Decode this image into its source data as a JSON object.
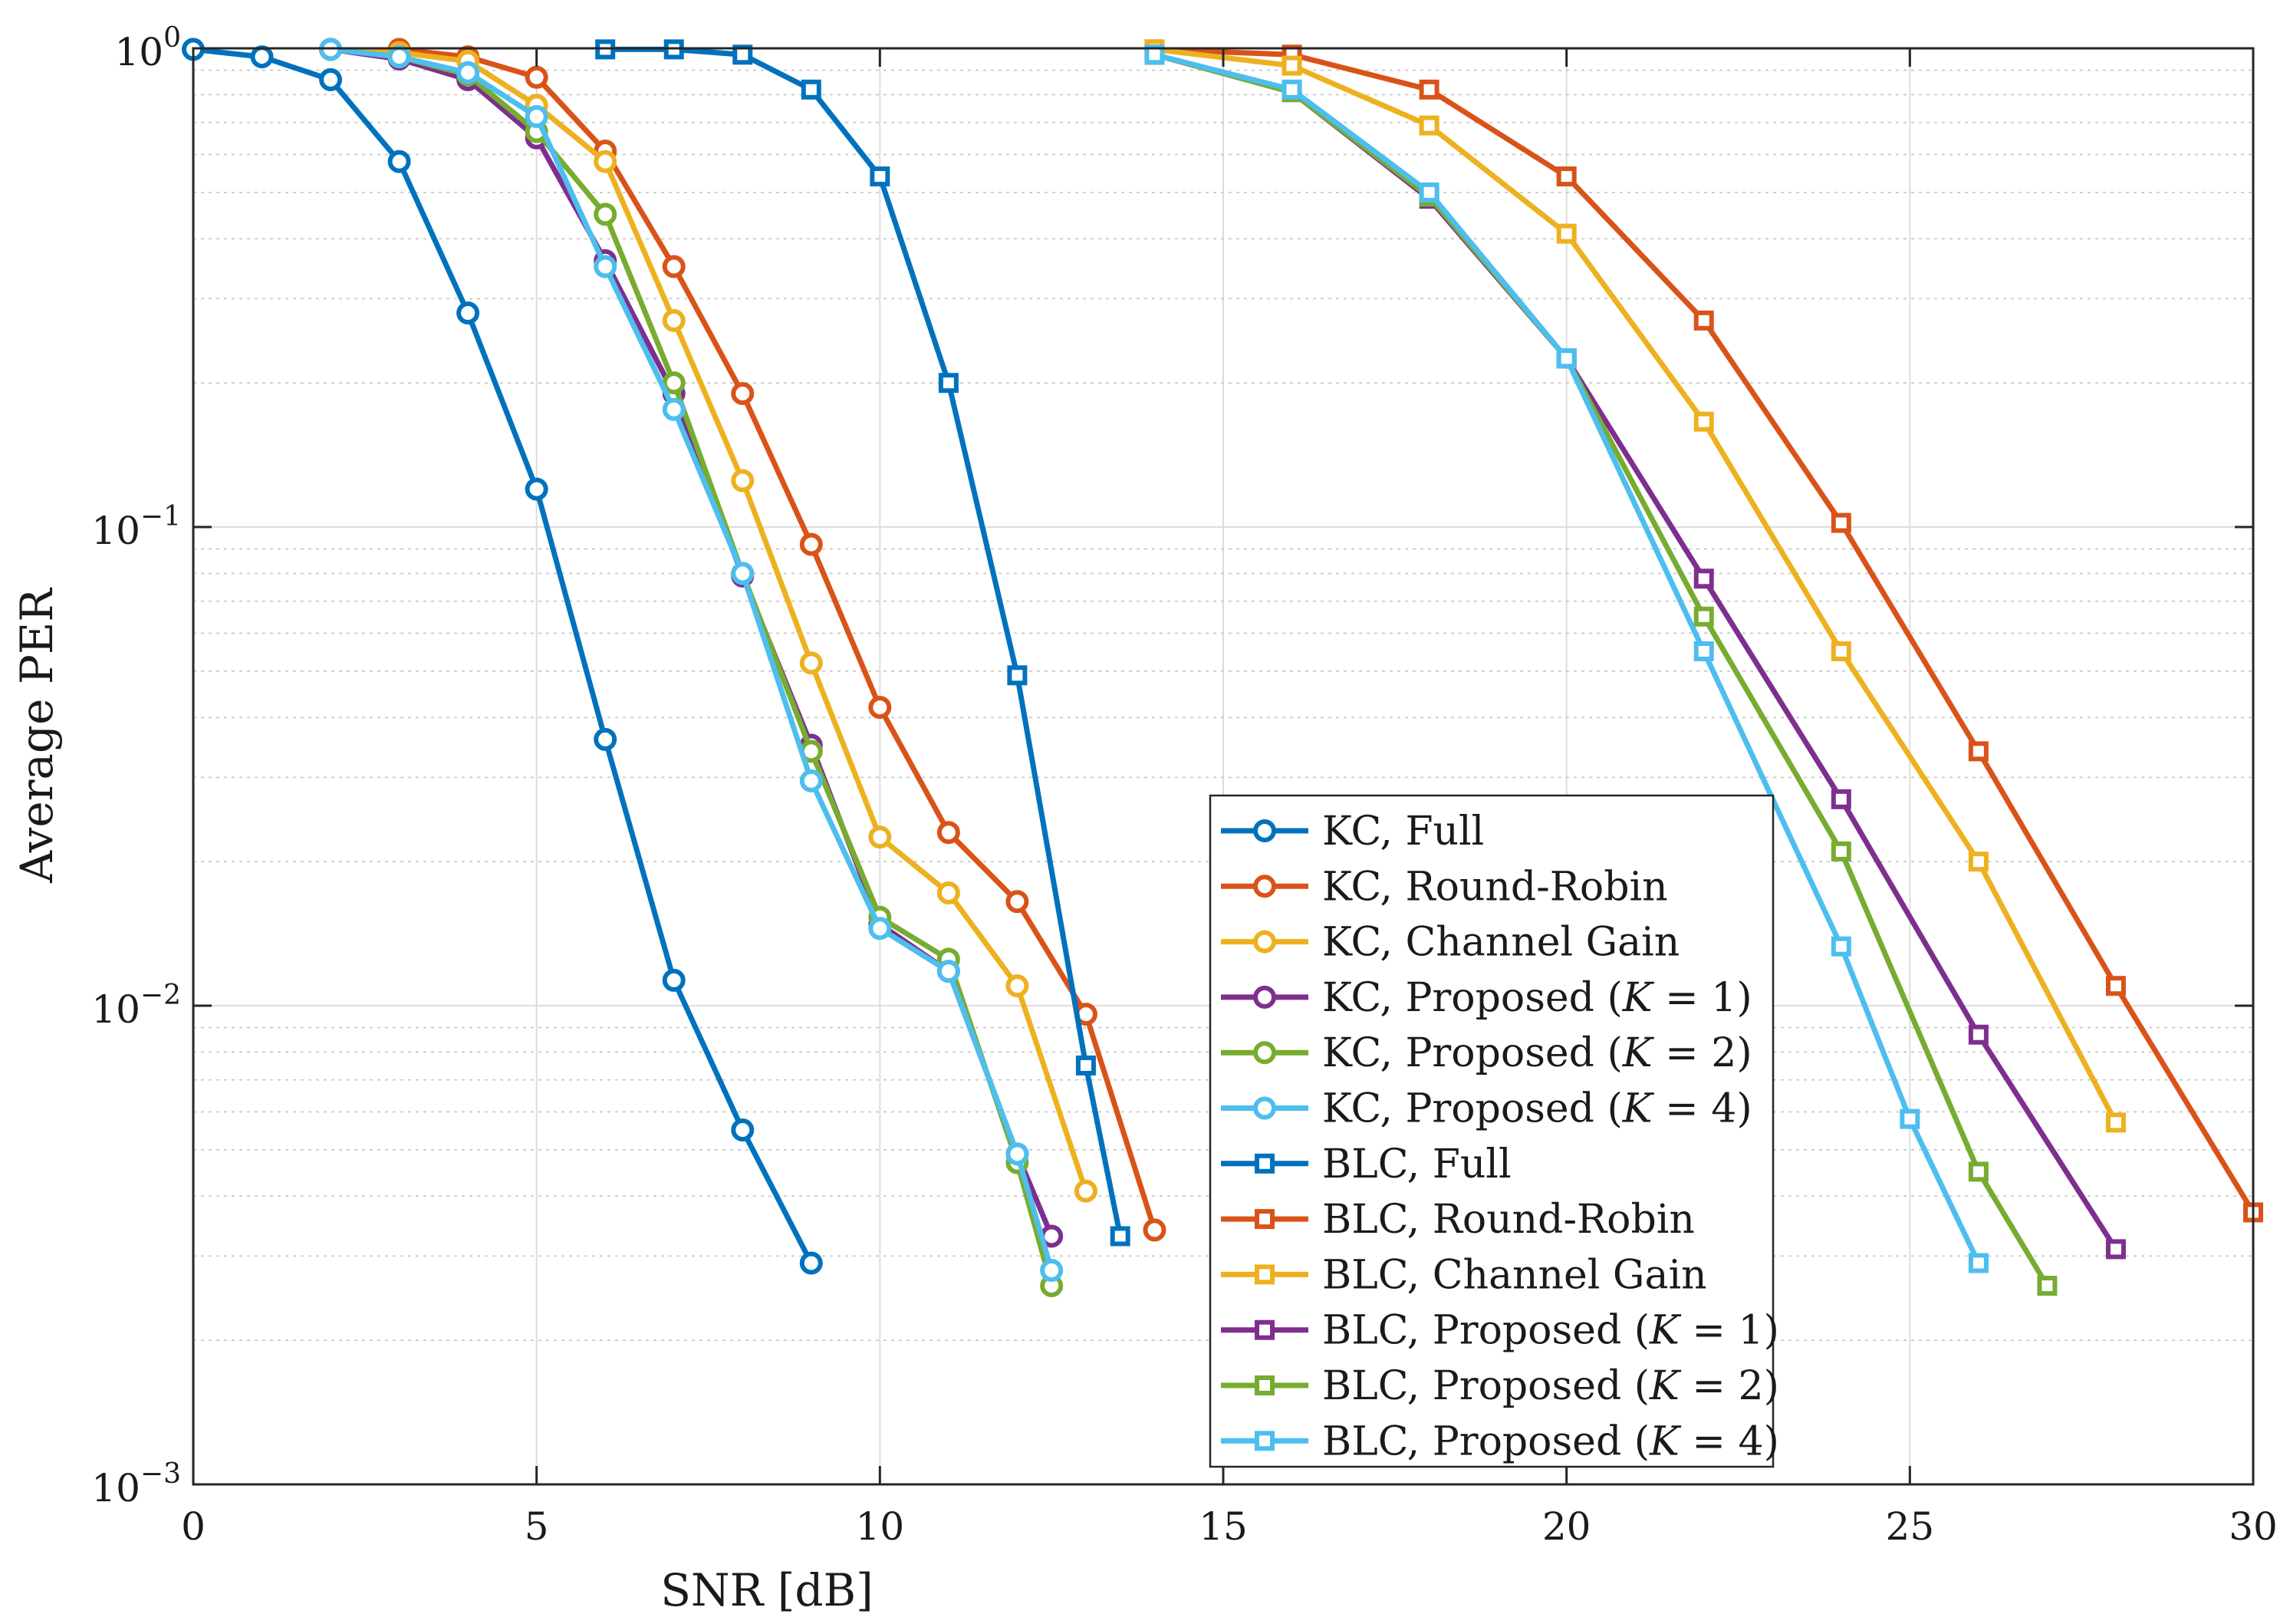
{
  "chart_data": {
    "type": "line",
    "title": "",
    "xlabel": "SNR [dB]",
    "ylabel": "Average PER",
    "xlim": [
      0,
      30
    ],
    "ylim": [
      0.001,
      1
    ],
    "yscale": "log",
    "grid": true,
    "legend_position": "bottom-center",
    "xticks": [
      0,
      5,
      10,
      15,
      20,
      25,
      30
    ],
    "xtick_labels": [
      "0",
      "5",
      "10",
      "15",
      "20",
      "25",
      "30"
    ],
    "yticks": [
      1,
      0.1,
      0.01,
      0.001
    ],
    "ytick_labels": [
      {
        "base": "10",
        "exp": "0"
      },
      {
        "base": "10",
        "exp": "−1"
      },
      {
        "base": "10",
        "exp": "−2"
      },
      {
        "base": "10",
        "exp": "−3"
      }
    ],
    "series": [
      {
        "name": "KC, Full",
        "prefix": "KC, ",
        "body": "Full",
        "k": "",
        "marker": "circle",
        "color": "#0072BD",
        "x": [
          0,
          1,
          2,
          3,
          4,
          5,
          6,
          7,
          8,
          9
        ],
        "y": [
          0.995,
          0.96,
          0.86,
          0.58,
          0.28,
          0.12,
          0.036,
          0.0113,
          0.0055,
          0.0029
        ]
      },
      {
        "name": "KC, Round-Robin",
        "prefix": "KC, ",
        "body": "Round-Robin",
        "k": "",
        "marker": "circle",
        "color": "#D95319",
        "x": [
          3,
          4,
          5,
          6,
          7,
          8,
          9,
          10,
          11,
          12,
          13,
          14
        ],
        "y": [
          0.995,
          0.96,
          0.87,
          0.61,
          0.35,
          0.19,
          0.092,
          0.042,
          0.023,
          0.0165,
          0.0096,
          0.0034
        ]
      },
      {
        "name": "KC, Channel Gain",
        "prefix": "KC, ",
        "body": "Channel Gain",
        "k": "",
        "marker": "circle",
        "color": "#EDB120",
        "x": [
          2,
          3,
          4,
          5,
          6,
          7,
          8,
          9,
          10,
          11,
          12,
          13
        ],
        "y": [
          0.995,
          0.98,
          0.94,
          0.76,
          0.58,
          0.27,
          0.125,
          0.052,
          0.0225,
          0.0172,
          0.011,
          0.0041
        ]
      },
      {
        "name": "KC, Proposed (K = 1)",
        "prefix": "KC, ",
        "body": "Proposed (",
        "k": "K",
        "post": " = 1)",
        "marker": "circle",
        "color": "#7E2F8E",
        "x": [
          2,
          3,
          4,
          5,
          6,
          7,
          8,
          9,
          10,
          11,
          12,
          12.5
        ],
        "y": [
          0.995,
          0.95,
          0.86,
          0.65,
          0.36,
          0.19,
          0.079,
          0.035,
          0.0148,
          0.0118,
          0.0049,
          0.0033
        ]
      },
      {
        "name": "KC, Proposed (K = 2)",
        "prefix": "KC, ",
        "body": "Proposed (",
        "k": "K",
        "post": " = 2)",
        "marker": "circle",
        "color": "#77AC30",
        "x": [
          2,
          3,
          4,
          5,
          6,
          7,
          8,
          9,
          10,
          11,
          12,
          12.5
        ],
        "y": [
          0.995,
          0.96,
          0.88,
          0.67,
          0.45,
          0.2,
          0.08,
          0.034,
          0.0153,
          0.0125,
          0.0047,
          0.0026
        ]
      },
      {
        "name": "KC, Proposed (K = 4)",
        "prefix": "KC, ",
        "body": "Proposed (",
        "k": "K",
        "post": " = 4)",
        "marker": "circle",
        "color": "#4DBEEE",
        "x": [
          2,
          3,
          4,
          5,
          6,
          7,
          8,
          9,
          10,
          11,
          12,
          12.5
        ],
        "y": [
          0.995,
          0.96,
          0.89,
          0.72,
          0.35,
          0.176,
          0.08,
          0.0295,
          0.0145,
          0.0118,
          0.0049,
          0.0028
        ]
      },
      {
        "name": "BLC, Full",
        "prefix": "BLC, ",
        "body": "Full",
        "k": "",
        "marker": "square",
        "color": "#0072BD",
        "x": [
          6,
          7,
          8,
          9,
          10,
          11,
          12,
          13,
          13.5
        ],
        "y": [
          0.995,
          0.995,
          0.97,
          0.82,
          0.54,
          0.2,
          0.049,
          0.0075,
          0.0033
        ]
      },
      {
        "name": "BLC, Round-Robin",
        "prefix": "BLC, ",
        "body": "Round-Robin",
        "k": "",
        "marker": "square",
        "color": "#D95319",
        "x": [
          14,
          16,
          18,
          20,
          22,
          24,
          26,
          28,
          30
        ],
        "y": [
          0.995,
          0.97,
          0.82,
          0.54,
          0.27,
          0.102,
          0.034,
          0.011,
          0.0037
        ]
      },
      {
        "name": "BLC, Channel Gain",
        "prefix": "BLC, ",
        "body": "Channel Gain",
        "k": "",
        "marker": "square",
        "color": "#EDB120",
        "x": [
          14,
          16,
          18,
          20,
          22,
          24,
          26,
          28
        ],
        "y": [
          0.995,
          0.92,
          0.69,
          0.41,
          0.166,
          0.055,
          0.02,
          0.0057
        ]
      },
      {
        "name": "BLC, Proposed (K = 1)",
        "prefix": "BLC, ",
        "body": "Proposed (",
        "k": "K",
        "post": " = 1)",
        "marker": "square",
        "color": "#7E2F8E",
        "x": [
          14,
          16,
          18,
          20,
          22,
          24,
          26,
          28
        ],
        "y": [
          0.97,
          0.81,
          0.485,
          0.225,
          0.078,
          0.027,
          0.0087,
          0.0031
        ]
      },
      {
        "name": "BLC, Proposed (K = 2)",
        "prefix": "BLC, ",
        "body": "Proposed (",
        "k": "K",
        "post": " = 2)",
        "marker": "square",
        "color": "#77AC30",
        "x": [
          14,
          16,
          18,
          20,
          22,
          24,
          26,
          27
        ],
        "y": [
          0.97,
          0.81,
          0.49,
          0.225,
          0.065,
          0.021,
          0.0045,
          0.0026
        ]
      },
      {
        "name": "BLC, Proposed (K = 4)",
        "prefix": "BLC, ",
        "body": "Proposed (",
        "k": "K",
        "post": " = 4)",
        "marker": "square",
        "color": "#4DBEEE",
        "x": [
          14,
          16,
          18,
          20,
          22,
          24,
          25,
          26
        ],
        "y": [
          0.97,
          0.82,
          0.5,
          0.225,
          0.055,
          0.0133,
          0.0058,
          0.0029
        ]
      }
    ]
  }
}
